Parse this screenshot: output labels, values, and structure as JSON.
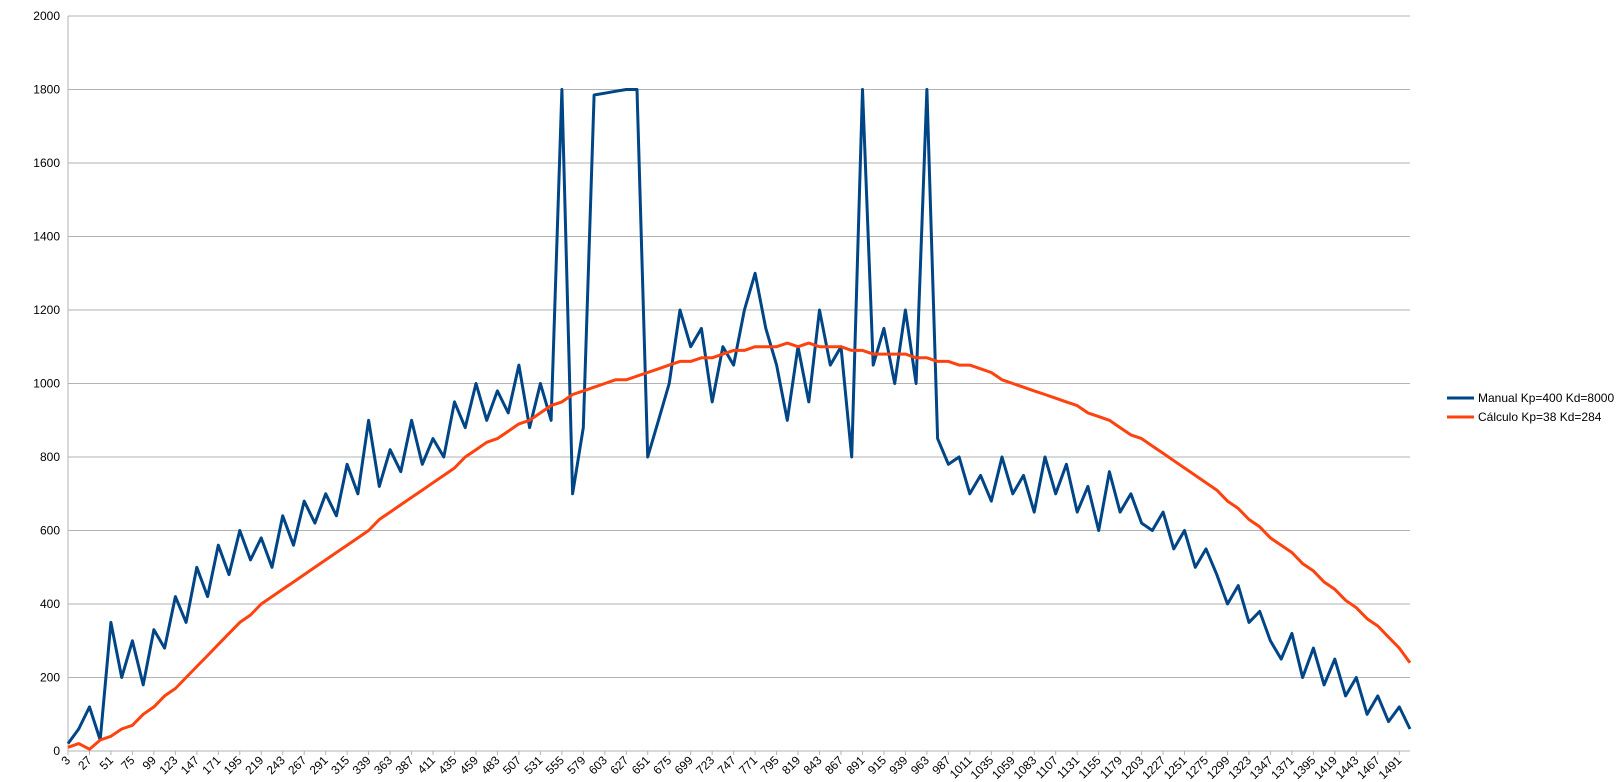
{
  "chart_data": {
    "type": "line",
    "x": [
      3,
      15,
      27,
      39,
      51,
      63,
      75,
      87,
      99,
      111,
      123,
      135,
      147,
      159,
      171,
      183,
      195,
      207,
      219,
      231,
      243,
      255,
      267,
      279,
      291,
      303,
      315,
      327,
      339,
      351,
      363,
      375,
      387,
      399,
      411,
      423,
      435,
      447,
      459,
      471,
      483,
      495,
      507,
      519,
      531,
      543,
      555,
      567,
      579,
      591,
      603,
      615,
      627,
      639,
      651,
      663,
      675,
      687,
      699,
      711,
      723,
      735,
      747,
      759,
      771,
      783,
      795,
      807,
      819,
      831,
      843,
      855,
      867,
      879,
      891,
      903,
      915,
      927,
      939,
      951,
      963,
      975,
      987,
      999,
      1011,
      1023,
      1035,
      1047,
      1059,
      1071,
      1083,
      1095,
      1107,
      1119,
      1131,
      1143,
      1155,
      1167,
      1179,
      1191,
      1203,
      1215,
      1227,
      1239,
      1251,
      1263,
      1275,
      1287,
      1299,
      1311,
      1323,
      1335,
      1347,
      1359,
      1371,
      1383,
      1395,
      1407,
      1419,
      1431,
      1443,
      1455,
      1467,
      1479,
      1491,
      1503
    ],
    "series": [
      {
        "name": "Manual Kp=400 Kd=8000",
        "color": "#004586",
        "values": [
          20,
          60,
          120,
          30,
          350,
          200,
          300,
          180,
          330,
          280,
          420,
          350,
          500,
          420,
          560,
          480,
          600,
          520,
          580,
          500,
          640,
          560,
          680,
          620,
          700,
          640,
          780,
          700,
          900,
          720,
          820,
          760,
          900,
          780,
          850,
          800,
          950,
          880,
          1000,
          900,
          980,
          920,
          1050,
          880,
          1000,
          900,
          1800,
          700,
          880,
          1785,
          1790,
          1795,
          1800,
          1800,
          800,
          900,
          1000,
          1200,
          1100,
          1150,
          950,
          1100,
          1050,
          1200,
          1300,
          1150,
          1050,
          900,
          1100,
          950,
          1200,
          1050,
          1100,
          800,
          1800,
          1050,
          1150,
          1000,
          1200,
          1000,
          1800,
          850,
          780,
          800,
          700,
          750,
          680,
          800,
          700,
          750,
          650,
          800,
          700,
          780,
          650,
          720,
          600,
          760,
          650,
          700,
          620,
          600,
          650,
          550,
          600,
          500,
          550,
          480,
          400,
          450,
          350,
          380,
          300,
          250,
          320,
          200,
          280,
          180,
          250,
          150,
          200,
          100,
          150,
          80,
          120,
          60
        ]
      },
      {
        "name": "Cálculo Kp=38 Kd=284",
        "color": "#ff420e",
        "values": [
          10,
          20,
          5,
          30,
          40,
          60,
          70,
          100,
          120,
          150,
          170,
          200,
          230,
          260,
          290,
          320,
          350,
          370,
          400,
          420,
          440,
          460,
          480,
          500,
          520,
          540,
          560,
          580,
          600,
          630,
          650,
          670,
          690,
          710,
          730,
          750,
          770,
          800,
          820,
          840,
          850,
          870,
          890,
          900,
          920,
          940,
          950,
          970,
          980,
          990,
          1000,
          1010,
          1010,
          1020,
          1030,
          1040,
          1050,
          1060,
          1060,
          1070,
          1070,
          1080,
          1090,
          1090,
          1100,
          1100,
          1100,
          1110,
          1100,
          1110,
          1100,
          1100,
          1100,
          1090,
          1090,
          1080,
          1080,
          1080,
          1080,
          1070,
          1070,
          1060,
          1060,
          1050,
          1050,
          1040,
          1030,
          1010,
          1000,
          990,
          980,
          970,
          960,
          950,
          940,
          920,
          910,
          900,
          880,
          860,
          850,
          830,
          810,
          790,
          770,
          750,
          730,
          710,
          680,
          660,
          630,
          610,
          580,
          560,
          540,
          510,
          490,
          460,
          440,
          410,
          390,
          360,
          340,
          310,
          280,
          240
        ]
      }
    ],
    "xlim": [
      3,
      1503
    ],
    "xticks": [
      3,
      27,
      51,
      75,
      99,
      123,
      147,
      171,
      195,
      219,
      243,
      267,
      291,
      315,
      339,
      363,
      387,
      411,
      435,
      459,
      483,
      507,
      531,
      555,
      579,
      603,
      627,
      651,
      675,
      699,
      723,
      747,
      771,
      795,
      819,
      843,
      867,
      891,
      915,
      939,
      963,
      987,
      1011,
      1035,
      1059,
      1083,
      1107,
      1131,
      1155,
      1179,
      1203,
      1227,
      1251,
      1275,
      1299,
      1323,
      1347,
      1371,
      1395,
      1419,
      1443,
      1467,
      1491
    ],
    "ylim": [
      0,
      2000
    ],
    "yticks": [
      0,
      200,
      400,
      600,
      800,
      1000,
      1200,
      1400,
      1600,
      1800,
      2000
    ],
    "grid": true,
    "legend": "right"
  }
}
